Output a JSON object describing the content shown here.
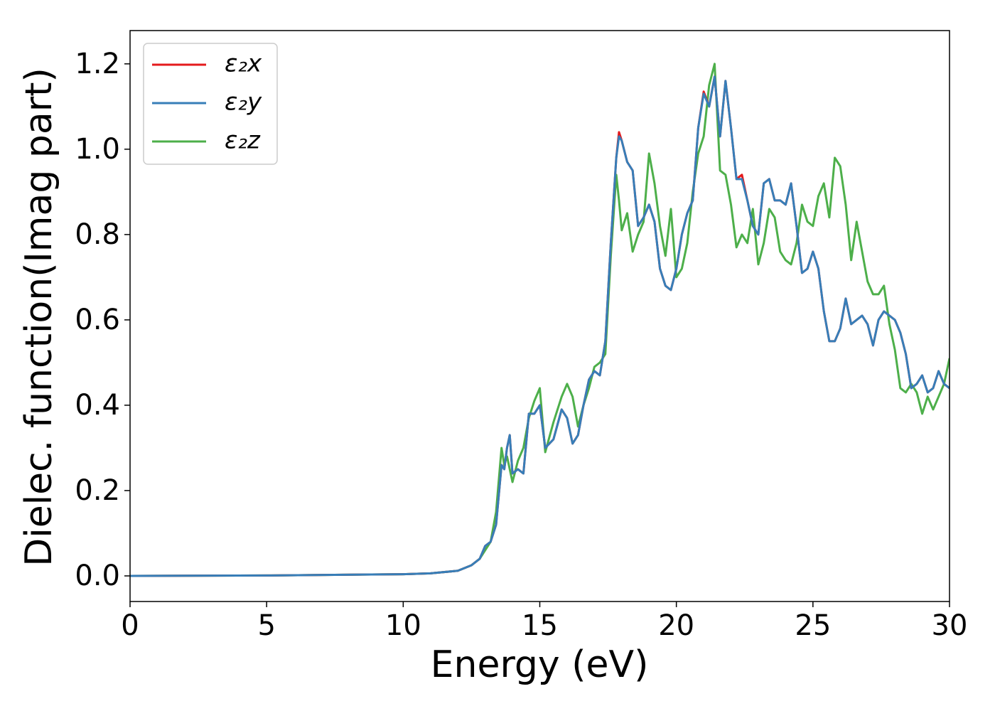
{
  "chart_data": {
    "type": "line",
    "xlabel": "Energy (eV)",
    "ylabel": "Dielec. function(Imag part)",
    "x": [
      0,
      5,
      10,
      11,
      12,
      12.5,
      12.8,
      13,
      13.2,
      13.4,
      13.6,
      13.7,
      13.8,
      13.9,
      14.0,
      14.2,
      14.4,
      14.6,
      14.8,
      15.0,
      15.2,
      15.5,
      15.8,
      16.0,
      16.2,
      16.4,
      16.6,
      16.8,
      17.0,
      17.2,
      17.4,
      17.6,
      17.8,
      17.9,
      18.0,
      18.2,
      18.4,
      18.6,
      18.8,
      19.0,
      19.2,
      19.4,
      19.6,
      19.8,
      20.0,
      20.2,
      20.4,
      20.6,
      20.8,
      21.0,
      21.2,
      21.4,
      21.6,
      21.8,
      22.0,
      22.2,
      22.4,
      22.6,
      22.8,
      23.0,
      23.2,
      23.4,
      23.6,
      23.8,
      24.0,
      24.2,
      24.4,
      24.6,
      24.8,
      25.0,
      25.2,
      25.4,
      25.6,
      25.8,
      26.0,
      26.2,
      26.4,
      26.6,
      26.8,
      27.0,
      27.2,
      27.4,
      27.6,
      27.8,
      28.0,
      28.2,
      28.4,
      28.6,
      28.8,
      29.0,
      29.2,
      29.4,
      29.6,
      29.8,
      30.0
    ],
    "series": [
      {
        "name": "ε₂x",
        "color": "#e41a1c",
        "values": [
          0,
          0.001,
          0.004,
          0.006,
          0.012,
          0.025,
          0.04,
          0.07,
          0.08,
          0.12,
          0.26,
          0.25,
          0.3,
          0.33,
          0.24,
          0.25,
          0.24,
          0.38,
          0.38,
          0.4,
          0.3,
          0.32,
          0.39,
          0.37,
          0.31,
          0.33,
          0.4,
          0.46,
          0.48,
          0.47,
          0.55,
          0.78,
          0.98,
          1.04,
          1.02,
          0.97,
          0.95,
          0.82,
          0.84,
          0.87,
          0.83,
          0.72,
          0.68,
          0.67,
          0.72,
          0.8,
          0.85,
          0.88,
          1.05,
          1.135,
          1.1,
          1.17,
          1.03,
          1.16,
          1.05,
          0.93,
          0.94,
          0.88,
          0.82,
          0.8,
          0.92,
          0.93,
          0.88,
          0.88,
          0.87,
          0.92,
          0.82,
          0.71,
          0.72,
          0.76,
          0.72,
          0.62,
          0.55,
          0.55,
          0.58,
          0.65,
          0.59,
          0.6,
          0.61,
          0.59,
          0.54,
          0.6,
          0.62,
          0.61,
          0.6,
          0.57,
          0.52,
          0.44,
          0.45,
          0.47,
          0.43,
          0.44,
          0.48,
          0.45,
          0.44
        ]
      },
      {
        "name": "ε₂y",
        "color": "#377eb8",
        "values": [
          0,
          0.001,
          0.004,
          0.006,
          0.012,
          0.025,
          0.04,
          0.07,
          0.08,
          0.12,
          0.26,
          0.25,
          0.3,
          0.33,
          0.24,
          0.25,
          0.24,
          0.38,
          0.38,
          0.4,
          0.3,
          0.32,
          0.39,
          0.37,
          0.31,
          0.33,
          0.4,
          0.46,
          0.48,
          0.47,
          0.55,
          0.78,
          0.98,
          1.03,
          1.02,
          0.97,
          0.95,
          0.82,
          0.84,
          0.87,
          0.83,
          0.72,
          0.68,
          0.67,
          0.72,
          0.8,
          0.85,
          0.88,
          1.05,
          1.13,
          1.1,
          1.17,
          1.03,
          1.16,
          1.05,
          0.93,
          0.93,
          0.88,
          0.82,
          0.8,
          0.92,
          0.93,
          0.88,
          0.88,
          0.87,
          0.92,
          0.82,
          0.71,
          0.72,
          0.76,
          0.72,
          0.62,
          0.55,
          0.55,
          0.58,
          0.65,
          0.59,
          0.6,
          0.61,
          0.59,
          0.54,
          0.6,
          0.62,
          0.61,
          0.6,
          0.57,
          0.52,
          0.44,
          0.45,
          0.47,
          0.43,
          0.44,
          0.48,
          0.45,
          0.44
        ]
      },
      {
        "name": "ε₂z",
        "color": "#4daf4a",
        "values": [
          0,
          0.001,
          0.004,
          0.006,
          0.012,
          0.025,
          0.04,
          0.06,
          0.08,
          0.15,
          0.3,
          0.26,
          0.28,
          0.25,
          0.22,
          0.27,
          0.3,
          0.37,
          0.41,
          0.44,
          0.29,
          0.36,
          0.42,
          0.45,
          0.42,
          0.35,
          0.4,
          0.44,
          0.49,
          0.5,
          0.52,
          0.75,
          0.94,
          0.88,
          0.81,
          0.85,
          0.76,
          0.8,
          0.83,
          0.99,
          0.92,
          0.82,
          0.75,
          0.86,
          0.7,
          0.72,
          0.78,
          0.9,
          0.99,
          1.03,
          1.15,
          1.2,
          0.95,
          0.94,
          0.87,
          0.77,
          0.8,
          0.78,
          0.86,
          0.73,
          0.78,
          0.86,
          0.84,
          0.76,
          0.74,
          0.73,
          0.78,
          0.87,
          0.83,
          0.82,
          0.89,
          0.92,
          0.84,
          0.98,
          0.96,
          0.87,
          0.74,
          0.83,
          0.76,
          0.69,
          0.66,
          0.66,
          0.68,
          0.59,
          0.53,
          0.44,
          0.43,
          0.45,
          0.43,
          0.38,
          0.42,
          0.39,
          0.42,
          0.45,
          0.51
        ]
      }
    ],
    "xlim": [
      0,
      30
    ],
    "xticks": [
      0,
      5,
      10,
      15,
      20,
      25,
      30
    ],
    "ylim": [
      -0.06,
      1.278
    ],
    "yticks": [
      {
        "value": 0,
        "label": "0.0"
      },
      0.2,
      0.4,
      0.6,
      0.8,
      {
        "value": 1,
        "label": "1.0"
      },
      1.2
    ],
    "legend": "upper left"
  }
}
